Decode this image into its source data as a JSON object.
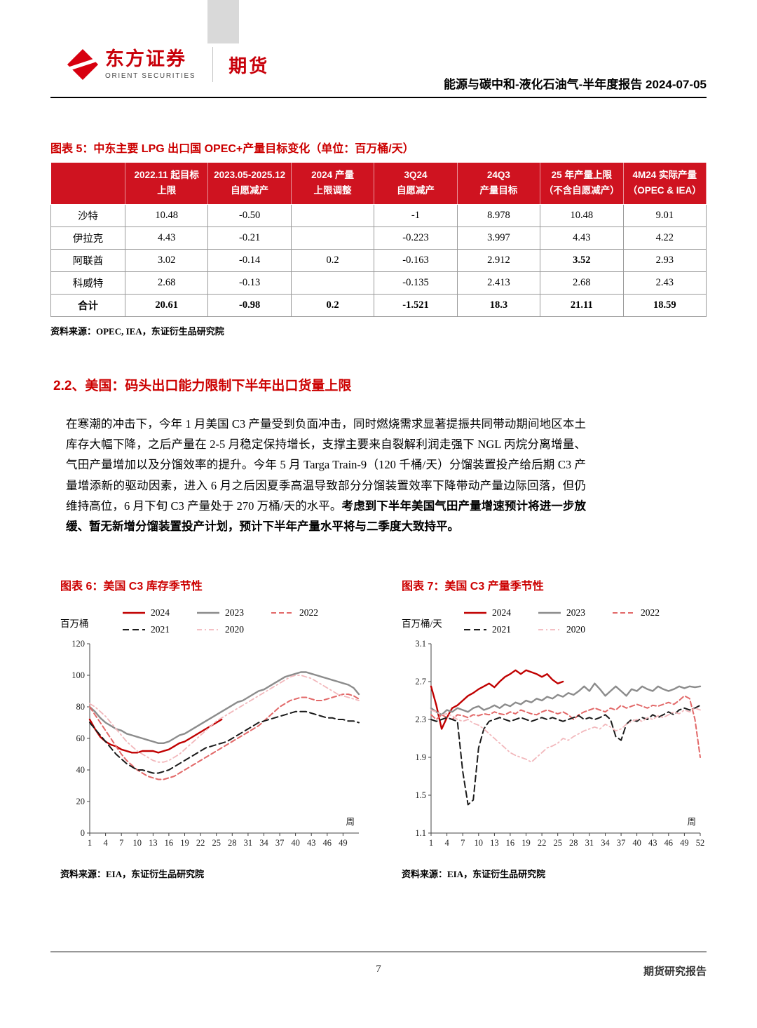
{
  "colors": {
    "accent_red": "#cc0000",
    "table_header_bg": "#cf1320",
    "series_2024": "#c00000",
    "series_2023": "#8c8c8c",
    "series_2022": "#e26868",
    "series_2021": "#1a1a1a",
    "series_2020": "#f2b8bc"
  },
  "header": {
    "logo_cn": "东方证券",
    "logo_en": "ORIENT SECURITIES",
    "division": "期货",
    "report_title": "能源与碳中和-液化石油气-半年度报告 2024-07-05"
  },
  "figure5": {
    "title": "图表 5：中东主要 LPG 出口国 OPEC+产量目标变化（单位：百万桶/天）",
    "header_row": [
      {
        "l1": "",
        "l2": ""
      },
      {
        "l1": "2022.11 起目标",
        "l2": "上限"
      },
      {
        "l1": "2023.05-2025.12",
        "l2": "自愿减产"
      },
      {
        "l1": "2024 产量",
        "l2": "上限调整"
      },
      {
        "l1": "3Q24",
        "l2": "自愿减产"
      },
      {
        "l1": "24Q3",
        "l2": "产量目标"
      },
      {
        "l1": "25 年产量上限",
        "l2": "（不含自愿减产）"
      },
      {
        "l1": "4M24 实际产量",
        "l2": "（OPEC & IEA）"
      }
    ],
    "rows": [
      {
        "label": "沙特",
        "cells": [
          "10.48",
          "-0.50",
          "",
          "-1",
          "8.978",
          "10.48",
          "9.01"
        ],
        "bold": false
      },
      {
        "label": "伊拉克",
        "cells": [
          "4.43",
          "-0.21",
          "",
          "-0.223",
          "3.997",
          "4.43",
          "4.22"
        ],
        "bold": false
      },
      {
        "label": "阿联酋",
        "cells": [
          "3.02",
          "-0.14",
          "0.2",
          "-0.163",
          "2.912",
          "3.52",
          "2.93"
        ],
        "bold": false,
        "bold_cols": [
          5
        ]
      },
      {
        "label": "科威特",
        "cells": [
          "2.68",
          "-0.13",
          "",
          "-0.135",
          "2.413",
          "2.68",
          "2.43"
        ],
        "bold": false
      },
      {
        "label": "合计",
        "cells": [
          "20.61",
          "-0.98",
          "0.2",
          "-1.521",
          "18.3",
          "21.11",
          "18.59"
        ],
        "bold": true
      }
    ],
    "source": "资料来源：OPEC, IEA，东证衍生品研究院"
  },
  "section": {
    "heading": "2.2、美国：码头出口能力限制下半年出口货量上限",
    "para_normal": "在寒潮的冲击下，今年 1 月美国 C3 产量受到负面冲击，同时燃烧需求显著提振共同带动期间地区本土库存大幅下降，之后产量在 2-5 月稳定保持增长，支撑主要来自裂解利润走强下 NGL 丙烷分离增量、气田产量增加以及分馏效率的提升。今年 5 月 Targa Train-9（120 千桶/天）分馏装置投产给后期 C3 产量增添新的驱动因素，进入 6 月之后因夏季高温导致部分分馏装置效率下降带动产量边际回落，但仍维持高位，6 月下旬 C3 产量处于 270 万桶/天的水平。",
    "para_bold": "考虑到下半年美国气田产量增速预计将进一步放缓、暂无新增分馏装置投产计划，预计下半年产量水平将与二季度大致持平。"
  },
  "figures": {
    "fig6": {
      "title": "图表 6：美国 C3 库存季节性",
      "source": "资料来源：EIA，东证衍生品研究院"
    },
    "fig7": {
      "title": "图表 7：美国 C3 产量季节性",
      "source": "资料来源：EIA，东证衍生品研究院"
    }
  },
  "footer": {
    "page_number": "7",
    "right_text": "期货研究报告"
  },
  "chart_data": [
    {
      "type": "line",
      "title": "美国C3库存季节性",
      "ylabel": "百万桶",
      "xlabel": "周",
      "xlim": [
        1,
        52
      ],
      "ylim": [
        0,
        120
      ],
      "yticks": [
        0,
        20,
        40,
        60,
        80,
        100,
        120
      ],
      "xticks": [
        1,
        4,
        7,
        10,
        13,
        16,
        19,
        22,
        25,
        28,
        31,
        34,
        37,
        40,
        43,
        46,
        49
      ],
      "grid": false,
      "legend_position": "top",
      "series": [
        {
          "name": "2024",
          "color": "#c00000",
          "dash": "",
          "width": 2.4,
          "x_start": 1,
          "values": [
            72,
            66,
            61,
            58,
            56,
            55,
            53,
            52,
            51,
            51,
            52,
            52,
            52,
            51,
            52,
            53,
            55,
            57,
            58,
            60,
            62,
            64,
            66,
            68,
            70,
            72
          ]
        },
        {
          "name": "2023",
          "color": "#8c8c8c",
          "dash": "",
          "width": 2.4,
          "x_start": 1,
          "values": [
            80,
            77,
            73,
            70,
            68,
            66,
            65,
            63,
            62,
            61,
            60,
            59,
            58,
            57,
            57,
            58,
            60,
            62,
            63,
            65,
            67,
            69,
            71,
            73,
            75,
            77,
            79,
            81,
            83,
            84,
            86,
            88,
            90,
            91,
            93,
            95,
            97,
            99,
            100,
            101,
            102,
            102,
            101,
            100,
            99,
            98,
            97,
            96,
            95,
            94,
            92,
            88
          ]
        },
        {
          "name": "2022",
          "color": "#e26868",
          "dash": "7 4",
          "width": 2,
          "x_start": 1,
          "values": [
            80,
            75,
            70,
            65,
            60,
            55,
            50,
            46,
            43,
            40,
            38,
            36,
            35,
            34,
            34,
            35,
            36,
            38,
            40,
            42,
            44,
            46,
            48,
            50,
            52,
            54,
            56,
            58,
            60,
            62,
            64,
            66,
            68,
            71,
            74,
            77,
            80,
            82,
            84,
            85,
            86,
            86,
            85,
            84,
            84,
            85,
            86,
            87,
            88,
            88,
            87,
            85
          ]
        },
        {
          "name": "2021",
          "color": "#1a1a1a",
          "dash": "9 5",
          "width": 2,
          "x_start": 1,
          "values": [
            70,
            66,
            62,
            58,
            54,
            50,
            47,
            44,
            42,
            40,
            40,
            39,
            38,
            38,
            39,
            40,
            42,
            44,
            46,
            48,
            50,
            52,
            54,
            55,
            56,
            57,
            58,
            60,
            62,
            64,
            66,
            68,
            70,
            71,
            72,
            73,
            74,
            75,
            76,
            77,
            77,
            77,
            76,
            75,
            74,
            73,
            73,
            72,
            72,
            71,
            71,
            70
          ]
        },
        {
          "name": "2020",
          "color": "#f2b8bc",
          "dash": "7 4 2 4",
          "width": 1.8,
          "x_start": 1,
          "values": [
            82,
            80,
            77,
            74,
            70,
            66,
            62,
            58,
            55,
            52,
            50,
            48,
            46,
            45,
            45,
            46,
            48,
            50,
            53,
            56,
            59,
            62,
            65,
            68,
            71,
            73,
            75,
            77,
            79,
            81,
            83,
            85,
            87,
            89,
            91,
            93,
            95,
            97,
            99,
            100,
            100,
            99,
            98,
            96,
            94,
            92,
            90,
            88,
            87,
            86,
            85,
            84
          ]
        }
      ]
    },
    {
      "type": "line",
      "title": "美国C3产量季节性",
      "ylabel": "百万桶/天",
      "xlabel": "周",
      "xlim": [
        1,
        52
      ],
      "ylim": [
        1.1,
        3.1
      ],
      "yticks": [
        1.1,
        1.5,
        1.9,
        2.3,
        2.7,
        3.1
      ],
      "xticks": [
        1,
        4,
        7,
        10,
        13,
        16,
        19,
        22,
        25,
        28,
        31,
        34,
        37,
        40,
        43,
        46,
        49,
        52
      ],
      "grid": false,
      "legend_position": "top",
      "series": [
        {
          "name": "2024",
          "color": "#c00000",
          "dash": "",
          "width": 2.4,
          "x_start": 1,
          "values": [
            2.65,
            2.45,
            2.2,
            2.32,
            2.42,
            2.45,
            2.5,
            2.55,
            2.58,
            2.62,
            2.65,
            2.68,
            2.64,
            2.7,
            2.75,
            2.78,
            2.82,
            2.78,
            2.82,
            2.8,
            2.78,
            2.75,
            2.78,
            2.72,
            2.68,
            2.7
          ]
        },
        {
          "name": "2023",
          "color": "#8c8c8c",
          "dash": "",
          "width": 2.4,
          "x_start": 1,
          "values": [
            2.42,
            2.38,
            2.35,
            2.4,
            2.38,
            2.42,
            2.4,
            2.38,
            2.42,
            2.44,
            2.4,
            2.42,
            2.45,
            2.42,
            2.46,
            2.44,
            2.48,
            2.46,
            2.5,
            2.48,
            2.52,
            2.5,
            2.54,
            2.52,
            2.56,
            2.54,
            2.58,
            2.56,
            2.6,
            2.65,
            2.6,
            2.68,
            2.62,
            2.55,
            2.6,
            2.65,
            2.6,
            2.55,
            2.62,
            2.6,
            2.65,
            2.62,
            2.6,
            2.65,
            2.62,
            2.6,
            2.62,
            2.65,
            2.63,
            2.65,
            2.64,
            2.65
          ]
        },
        {
          "name": "2022",
          "color": "#e26868",
          "dash": "7 4",
          "width": 2,
          "x_start": 1,
          "values": [
            2.35,
            2.3,
            2.35,
            2.32,
            2.3,
            2.35,
            2.34,
            2.32,
            2.35,
            2.34,
            2.36,
            2.35,
            2.38,
            2.36,
            2.35,
            2.38,
            2.36,
            2.4,
            2.38,
            2.36,
            2.35,
            2.38,
            2.4,
            2.38,
            2.36,
            2.38,
            2.35,
            2.3,
            2.35,
            2.38,
            2.4,
            2.42,
            2.4,
            2.38,
            2.42,
            2.4,
            2.45,
            2.42,
            2.44,
            2.46,
            2.44,
            2.42,
            2.45,
            2.44,
            2.46,
            2.48,
            2.46,
            2.5,
            2.55,
            2.52,
            2.3,
            1.9
          ]
        },
        {
          "name": "2021",
          "color": "#1a1a1a",
          "dash": "9 5",
          "width": 2,
          "x_start": 1,
          "values": [
            2.3,
            2.28,
            2.3,
            2.32,
            2.3,
            2.28,
            1.75,
            1.4,
            1.45,
            2.0,
            2.2,
            2.28,
            2.3,
            2.32,
            2.3,
            2.28,
            2.3,
            2.32,
            2.3,
            2.28,
            2.3,
            2.32,
            2.3,
            2.32,
            2.3,
            2.28,
            2.3,
            2.32,
            2.34,
            2.3,
            2.32,
            2.3,
            2.32,
            2.35,
            2.3,
            2.12,
            2.08,
            2.25,
            2.3,
            2.28,
            2.32,
            2.3,
            2.35,
            2.32,
            2.35,
            2.38,
            2.35,
            2.4,
            2.42,
            2.4,
            2.42,
            2.45
          ]
        },
        {
          "name": "2020",
          "color": "#f2b8bc",
          "dash": "7 4 2 4",
          "width": 1.8,
          "x_start": 1,
          "values": [
            2.4,
            2.38,
            2.35,
            2.36,
            2.34,
            2.3,
            2.28,
            2.3,
            2.26,
            2.24,
            2.2,
            2.15,
            2.1,
            2.05,
            2.0,
            1.95,
            1.92,
            1.9,
            1.88,
            1.85,
            1.9,
            1.95,
            2.0,
            2.02,
            2.05,
            2.1,
            2.08,
            2.12,
            2.15,
            2.18,
            2.2,
            2.22,
            2.2,
            2.25,
            2.22,
            2.18,
            2.2,
            2.25,
            2.28,
            2.3,
            2.28,
            2.32,
            2.3,
            2.34,
            2.32,
            2.35,
            2.38,
            2.36,
            2.4,
            2.38,
            2.42,
            2.4
          ]
        }
      ]
    }
  ]
}
